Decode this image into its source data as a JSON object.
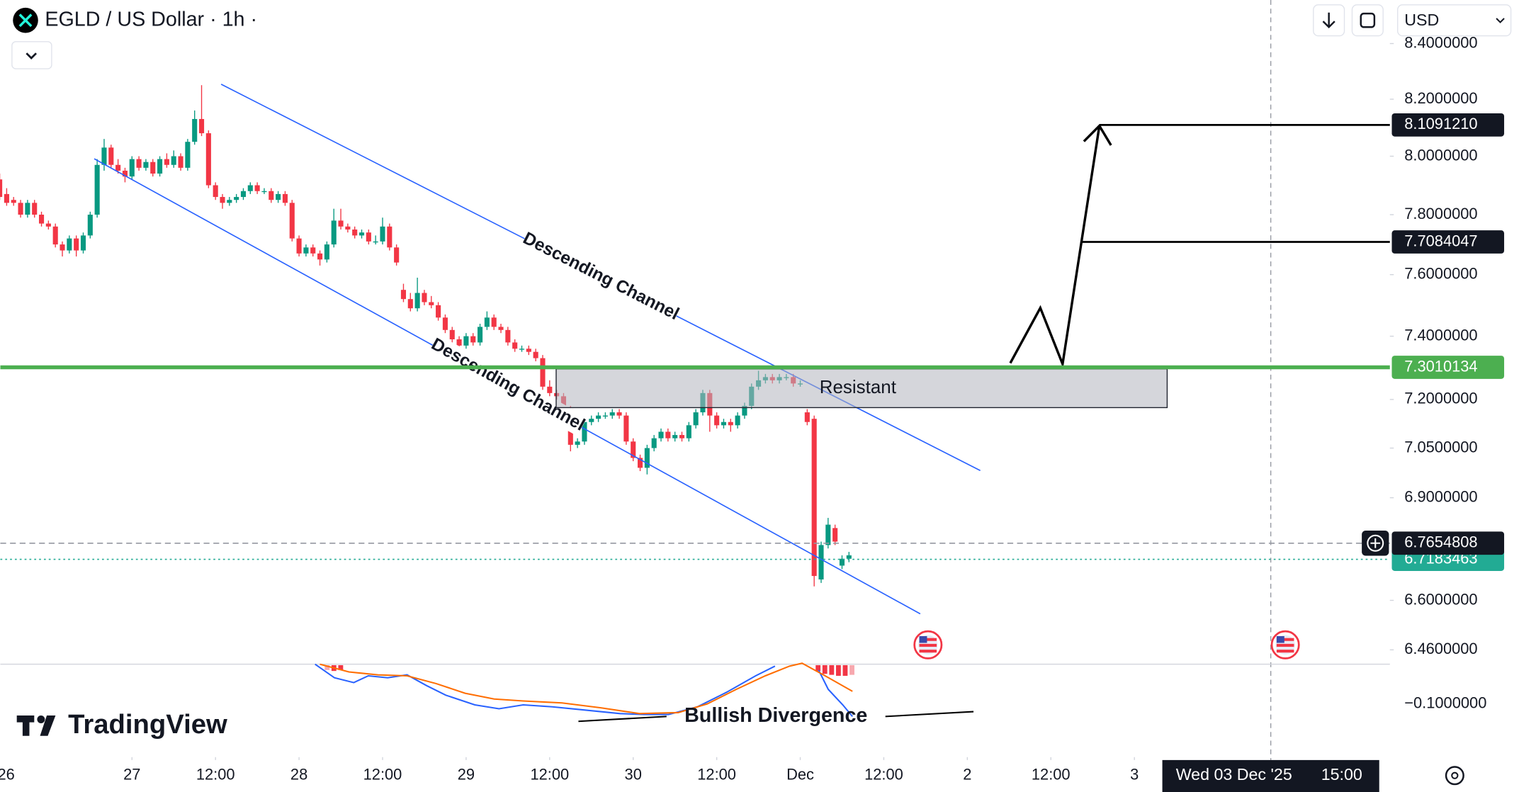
{
  "chart_data": {
    "type": "candlestick",
    "title": "EGLD / US Dollar · 1h ·",
    "currency": "USD",
    "brand": "TradingView",
    "crosshair_date": "Wed 03 Dec '25",
    "crosshair_time": "15:00",
    "annotations": [
      "Descending Channel",
      "Descending Channel",
      "Resistant",
      "Bullish Divergence"
    ],
    "log_scale": true,
    "up_color": "#089981",
    "down_color": "#f23645",
    "xlim": [
      5.09,
      204.7
    ],
    "ylim": [
      6.42,
      8.56
    ],
    "xticks": [
      {
        "value": 0,
        "label": "26"
      },
      {
        "value": 24,
        "label": "27"
      },
      {
        "value": 36,
        "label": "12:00"
      },
      {
        "value": 48,
        "label": "28"
      },
      {
        "value": 60,
        "label": "12:00"
      },
      {
        "value": 72,
        "label": "29"
      },
      {
        "value": 84,
        "label": "12:00"
      },
      {
        "value": 96,
        "label": "30"
      },
      {
        "value": 108,
        "label": "12:00"
      },
      {
        "value": 120,
        "label": "Dec"
      },
      {
        "value": 132,
        "label": "12:00"
      },
      {
        "value": 144,
        "label": "2"
      },
      {
        "value": 156,
        "label": "12:00"
      },
      {
        "value": 168,
        "label": "3"
      }
    ],
    "yticks": [
      {
        "value": 8.4,
        "label": "8.4000000"
      },
      {
        "value": 8.2,
        "label": "8.2000000"
      },
      {
        "value": 8.0,
        "label": "8.0000000"
      },
      {
        "value": 7.8,
        "label": "7.8000000"
      },
      {
        "value": 7.6,
        "label": "7.6000000"
      },
      {
        "value": 7.4,
        "label": "7.4000000"
      },
      {
        "value": 7.2,
        "label": "7.2000000"
      },
      {
        "value": 7.05,
        "label": "7.0500000"
      },
      {
        "value": 6.9,
        "label": "6.9000000"
      },
      {
        "value": 6.6,
        "label": "6.6000000"
      },
      {
        "value": 6.46,
        "label": "6.4600000"
      }
    ],
    "indicator_yticks": [
      {
        "value": -0.1,
        "label": "−0.1000000"
      }
    ],
    "levels": [
      {
        "value": 8.109121,
        "label": "8.1091210",
        "color": "#000000",
        "style": "solid"
      },
      {
        "value": 7.7084047,
        "label": "7.7084047",
        "color": "#000000",
        "style": "solid"
      },
      {
        "value": 7.3010134,
        "label": "7.3010134",
        "color": "#4caf50",
        "style": "solid"
      },
      {
        "value": 6.7654808,
        "label": "6.7654808",
        "color": "#000000",
        "style": "dashed"
      },
      {
        "value": 6.7183463,
        "label": "6.7183463",
        "color": "#22ab94",
        "style": "dotted"
      }
    ],
    "candles": {
      "x": [
        5,
        6,
        7,
        8,
        9,
        10,
        11,
        12,
        13,
        14,
        15,
        16,
        17,
        18,
        19,
        20,
        21,
        22,
        23,
        24,
        25,
        26,
        27,
        28,
        29,
        30,
        31,
        32,
        33,
        34,
        35,
        36,
        37,
        38,
        39,
        40,
        41,
        42,
        43,
        44,
        45,
        46,
        47,
        48,
        49,
        50,
        51,
        52,
        53,
        54,
        55,
        56,
        57,
        58,
        59,
        60,
        61,
        62,
        63,
        64,
        65,
        66,
        67,
        68,
        69,
        70,
        71,
        72,
        73,
        74,
        75,
        76,
        77,
        78,
        79,
        80,
        81,
        82,
        83,
        84,
        85,
        86,
        87,
        88,
        89,
        90,
        91,
        92,
        93,
        94,
        95,
        96,
        97,
        98,
        99,
        100,
        101,
        102,
        103,
        104,
        105,
        106,
        107,
        108,
        109,
        110,
        111,
        112,
        113,
        114,
        115,
        116,
        117,
        118,
        119,
        120,
        121,
        122,
        123,
        124,
        125,
        126,
        127
      ],
      "ohlc": [
        [
          7.92,
          7.94,
          7.85,
          7.86
        ],
        [
          7.87,
          7.89,
          7.83,
          7.84
        ],
        [
          7.85,
          7.86,
          7.83,
          7.84
        ],
        [
          7.84,
          7.85,
          7.79,
          7.8
        ],
        [
          7.8,
          7.85,
          7.79,
          7.84
        ],
        [
          7.84,
          7.85,
          7.79,
          7.8
        ],
        [
          7.8,
          7.81,
          7.76,
          7.77
        ],
        [
          7.77,
          7.78,
          7.75,
          7.76
        ],
        [
          7.76,
          7.77,
          7.69,
          7.7
        ],
        [
          7.7,
          7.71,
          7.66,
          7.68
        ],
        [
          7.68,
          7.73,
          7.67,
          7.72
        ],
        [
          7.72,
          7.73,
          7.66,
          7.68
        ],
        [
          7.68,
          7.74,
          7.67,
          7.73
        ],
        [
          7.73,
          7.81,
          7.72,
          7.8
        ],
        [
          7.8,
          7.99,
          7.79,
          7.97
        ],
        [
          7.97,
          8.06,
          7.95,
          8.03
        ],
        [
          8.03,
          8.04,
          7.96,
          7.97
        ],
        [
          7.97,
          7.99,
          7.94,
          7.95
        ],
        [
          7.95,
          7.96,
          7.91,
          7.93
        ],
        [
          7.93,
          8.0,
          7.92,
          7.99
        ],
        [
          7.99,
          8.0,
          7.95,
          7.96
        ],
        [
          7.96,
          7.99,
          7.95,
          7.98
        ],
        [
          7.98,
          7.99,
          7.93,
          7.94
        ],
        [
          7.94,
          8.0,
          7.93,
          7.99
        ],
        [
          7.99,
          8.01,
          7.96,
          7.97
        ],
        [
          7.97,
          8.02,
          7.96,
          8.0
        ],
        [
          8.0,
          8.01,
          7.95,
          7.96
        ],
        [
          7.96,
          8.06,
          7.95,
          8.05
        ],
        [
          8.05,
          8.16,
          8.04,
          8.13
        ],
        [
          8.13,
          8.25,
          8.07,
          8.08
        ],
        [
          8.08,
          8.09,
          7.89,
          7.9
        ],
        [
          7.9,
          7.91,
          7.85,
          7.86
        ],
        [
          7.86,
          7.87,
          7.82,
          7.84
        ],
        [
          7.84,
          7.86,
          7.83,
          7.85
        ],
        [
          7.85,
          7.87,
          7.84,
          7.86
        ],
        [
          7.86,
          7.89,
          7.85,
          7.88
        ],
        [
          7.88,
          7.91,
          7.87,
          7.9
        ],
        [
          7.9,
          7.91,
          7.87,
          7.88
        ],
        [
          7.88,
          7.89,
          7.87,
          7.88
        ],
        [
          7.88,
          7.89,
          7.84,
          7.85
        ],
        [
          7.85,
          7.88,
          7.84,
          7.87
        ],
        [
          7.87,
          7.88,
          7.83,
          7.84
        ],
        [
          7.84,
          7.85,
          7.71,
          7.72
        ],
        [
          7.72,
          7.73,
          7.66,
          7.67
        ],
        [
          7.67,
          7.7,
          7.66,
          7.69
        ],
        [
          7.69,
          7.7,
          7.66,
          7.67
        ],
        [
          7.67,
          7.68,
          7.63,
          7.65
        ],
        [
          7.65,
          7.71,
          7.64,
          7.7
        ],
        [
          7.7,
          7.82,
          7.69,
          7.78
        ],
        [
          7.78,
          7.82,
          7.75,
          7.76
        ],
        [
          7.76,
          7.77,
          7.74,
          7.75
        ],
        [
          7.75,
          7.76,
          7.72,
          7.73
        ],
        [
          7.73,
          7.75,
          7.72,
          7.74
        ],
        [
          7.74,
          7.75,
          7.7,
          7.71
        ],
        [
          7.71,
          7.73,
          7.7,
          7.71
        ],
        [
          7.71,
          7.79,
          7.7,
          7.76
        ],
        [
          7.76,
          7.77,
          7.68,
          7.69
        ],
        [
          7.69,
          7.7,
          7.63,
          7.64
        ],
        [
          7.55,
          7.57,
          7.51,
          7.52
        ],
        [
          7.52,
          7.54,
          7.48,
          7.49
        ],
        [
          7.49,
          7.59,
          7.48,
          7.54
        ],
        [
          7.54,
          7.55,
          7.5,
          7.51
        ],
        [
          7.51,
          7.53,
          7.49,
          7.5
        ],
        [
          7.5,
          7.51,
          7.45,
          7.46
        ],
        [
          7.46,
          7.47,
          7.41,
          7.42
        ],
        [
          7.42,
          7.43,
          7.38,
          7.39
        ],
        [
          7.39,
          7.4,
          7.36,
          7.37
        ],
        [
          7.37,
          7.41,
          7.36,
          7.4
        ],
        [
          7.4,
          7.41,
          7.37,
          7.38
        ],
        [
          7.38,
          7.44,
          7.37,
          7.43
        ],
        [
          7.43,
          7.48,
          7.42,
          7.46
        ],
        [
          7.46,
          7.47,
          7.42,
          7.43
        ],
        [
          7.43,
          7.44,
          7.41,
          7.42
        ],
        [
          7.42,
          7.43,
          7.37,
          7.38
        ],
        [
          7.38,
          7.39,
          7.35,
          7.36
        ],
        [
          7.36,
          7.37,
          7.35,
          7.36
        ],
        [
          7.36,
          7.37,
          7.34,
          7.35
        ],
        [
          7.35,
          7.36,
          7.32,
          7.33
        ],
        [
          7.33,
          7.34,
          7.23,
          7.24
        ],
        [
          7.24,
          7.26,
          7.21,
          7.22
        ],
        [
          7.22,
          7.23,
          7.2,
          7.21
        ],
        [
          7.21,
          7.22,
          7.16,
          7.17
        ],
        [
          7.17,
          7.18,
          7.04,
          7.06
        ],
        [
          7.06,
          7.08,
          7.05,
          7.07
        ],
        [
          7.07,
          7.14,
          7.06,
          7.13
        ],
        [
          7.13,
          7.15,
          7.12,
          7.14
        ],
        [
          7.14,
          7.16,
          7.13,
          7.15
        ],
        [
          7.15,
          7.16,
          7.14,
          7.15
        ],
        [
          7.15,
          7.17,
          7.14,
          7.16
        ],
        [
          7.16,
          7.17,
          7.14,
          7.15
        ],
        [
          7.15,
          7.16,
          7.06,
          7.07
        ],
        [
          7.07,
          7.08,
          7.01,
          7.02
        ],
        [
          7.02,
          7.03,
          6.98,
          6.99
        ],
        [
          6.99,
          7.06,
          6.97,
          7.05
        ],
        [
          7.05,
          7.09,
          7.04,
          7.08
        ],
        [
          7.08,
          7.11,
          7.07,
          7.1
        ],
        [
          7.1,
          7.11,
          7.07,
          7.08
        ],
        [
          7.08,
          7.1,
          7.07,
          7.09
        ],
        [
          7.09,
          7.1,
          7.07,
          7.08
        ],
        [
          7.08,
          7.13,
          7.07,
          7.12
        ],
        [
          7.12,
          7.17,
          7.11,
          7.16
        ],
        [
          7.16,
          7.23,
          7.15,
          7.22
        ],
        [
          7.22,
          7.23,
          7.1,
          7.15
        ],
        [
          7.15,
          7.16,
          7.11,
          7.12
        ],
        [
          7.12,
          7.14,
          7.11,
          7.13
        ],
        [
          7.13,
          7.14,
          7.1,
          7.12
        ],
        [
          7.12,
          7.16,
          7.11,
          7.15
        ],
        [
          7.15,
          7.19,
          7.14,
          7.18
        ],
        [
          7.18,
          7.25,
          7.17,
          7.24
        ],
        [
          7.24,
          7.29,
          7.23,
          7.26
        ],
        [
          7.26,
          7.28,
          7.25,
          7.27
        ],
        [
          7.27,
          7.28,
          7.25,
          7.26
        ],
        [
          7.26,
          7.28,
          7.25,
          7.27
        ],
        [
          7.27,
          7.28,
          7.26,
          7.27
        ],
        [
          7.27,
          7.28,
          7.24,
          7.25
        ],
        [
          7.25,
          7.26,
          7.24,
          7.25
        ],
        [
          7.16,
          7.17,
          7.12,
          7.13
        ],
        [
          7.14,
          7.15,
          6.64,
          6.67
        ],
        [
          6.66,
          6.77,
          6.65,
          6.76
        ],
        [
          6.76,
          6.84,
          6.75,
          6.82
        ],
        [
          6.81,
          6.82,
          6.76,
          6.77
        ],
        [
          6.7,
          6.73,
          6.69,
          6.72
        ],
        [
          6.72,
          6.74,
          6.71,
          6.73
        ]
      ]
    }
  }
}
